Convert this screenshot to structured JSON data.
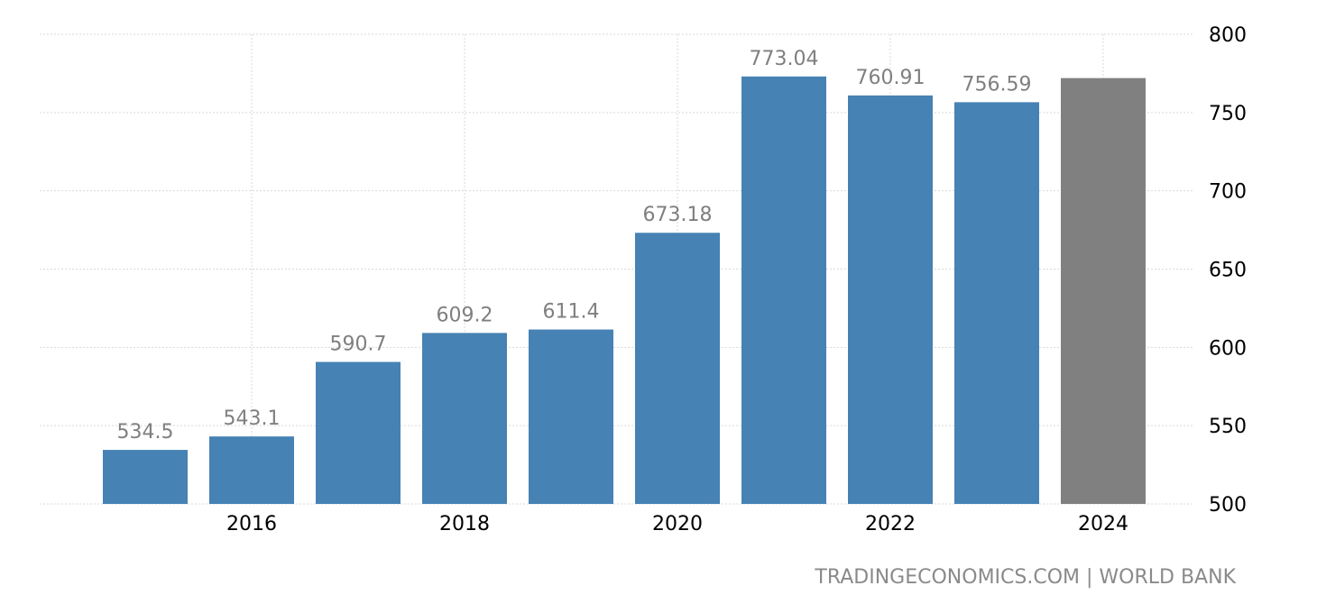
{
  "source": {
    "text": "TRADINGECONOMICS.COM | WORLD BANK"
  },
  "chart_data": {
    "type": "bar",
    "title": "",
    "xlabel": "",
    "ylabel": "",
    "years": [
      2015,
      2016,
      2017,
      2018,
      2019,
      2020,
      2021,
      2022,
      2023,
      2024
    ],
    "values": [
      534.5,
      543.1,
      590.7,
      609.2,
      611.4,
      673.18,
      773.04,
      760.91,
      756.59,
      772
    ],
    "data_labels": [
      "534.5",
      "543.1",
      "590.7",
      "609.2",
      "611.4",
      "673.18",
      "773.04",
      "760.91",
      "756.59",
      ""
    ],
    "x_tick_labels": [
      {
        "year": 2016,
        "label": "2016"
      },
      {
        "year": 2018,
        "label": "2018"
      },
      {
        "year": 2020,
        "label": "2020"
      },
      {
        "year": 2022,
        "label": "2022"
      },
      {
        "year": 2024,
        "label": "2024"
      }
    ],
    "y_ticks": [
      500,
      550,
      600,
      650,
      700,
      750,
      800
    ],
    "y_tick_labels": [
      "500",
      "550",
      "600",
      "650",
      "700",
      "750",
      "800"
    ],
    "ylim": [
      500,
      800
    ],
    "y_axis_side": "right",
    "grid": true,
    "colors": {
      "actual": "#4682b4",
      "forecast": "#808080",
      "label": "#7f7f7f",
      "grid": "#d9d9d9",
      "tick": "#000000"
    },
    "forecast_years": [
      2024
    ]
  }
}
